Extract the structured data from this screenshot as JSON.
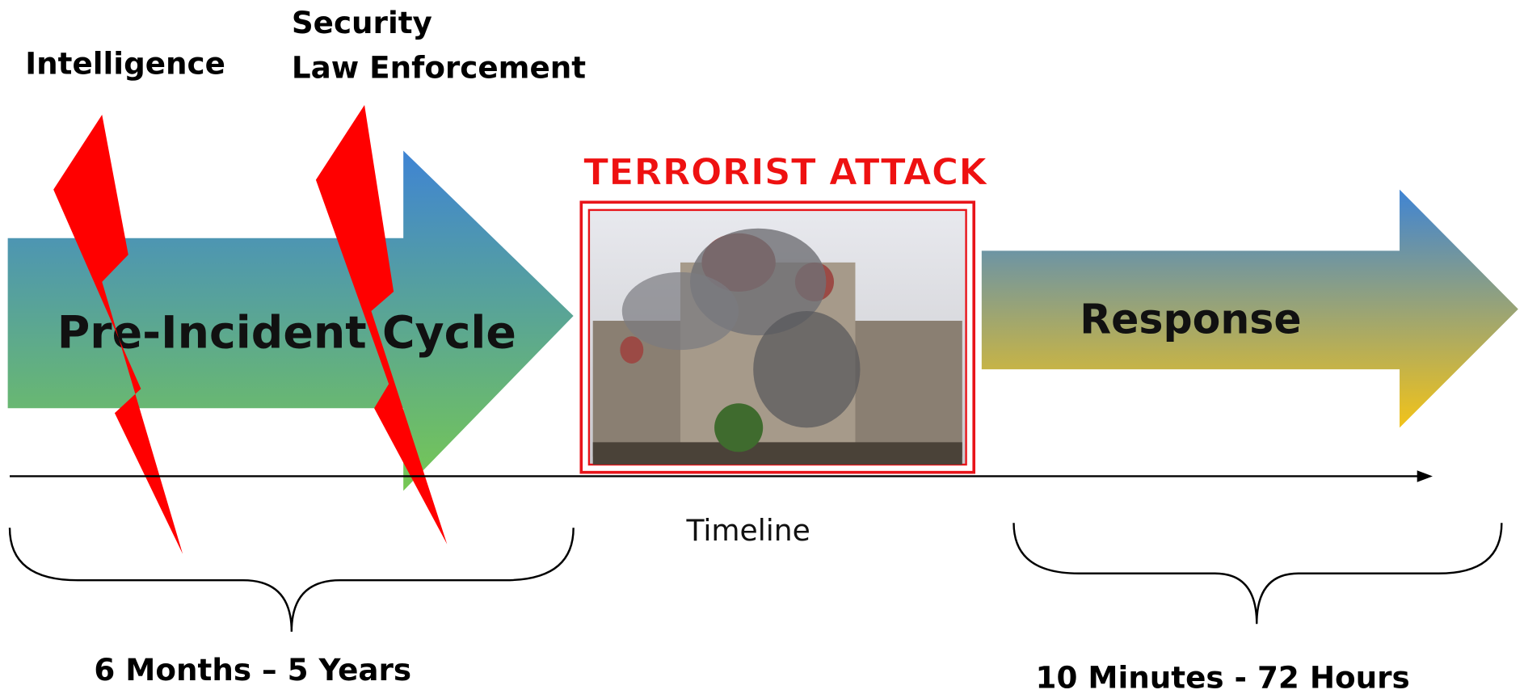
{
  "labels": {
    "intelligence": "Intelligence",
    "security": "Security",
    "law_enforcement": "Law Enforcement",
    "pre_incident": "Pre-Incident Cycle",
    "attack": "TERRORIST ATTACK",
    "response": "Response",
    "timeline": "Timeline",
    "pre_duration": "6 Months – 5 Years",
    "response_duration": "10 Minutes -  72 Hours"
  }
}
